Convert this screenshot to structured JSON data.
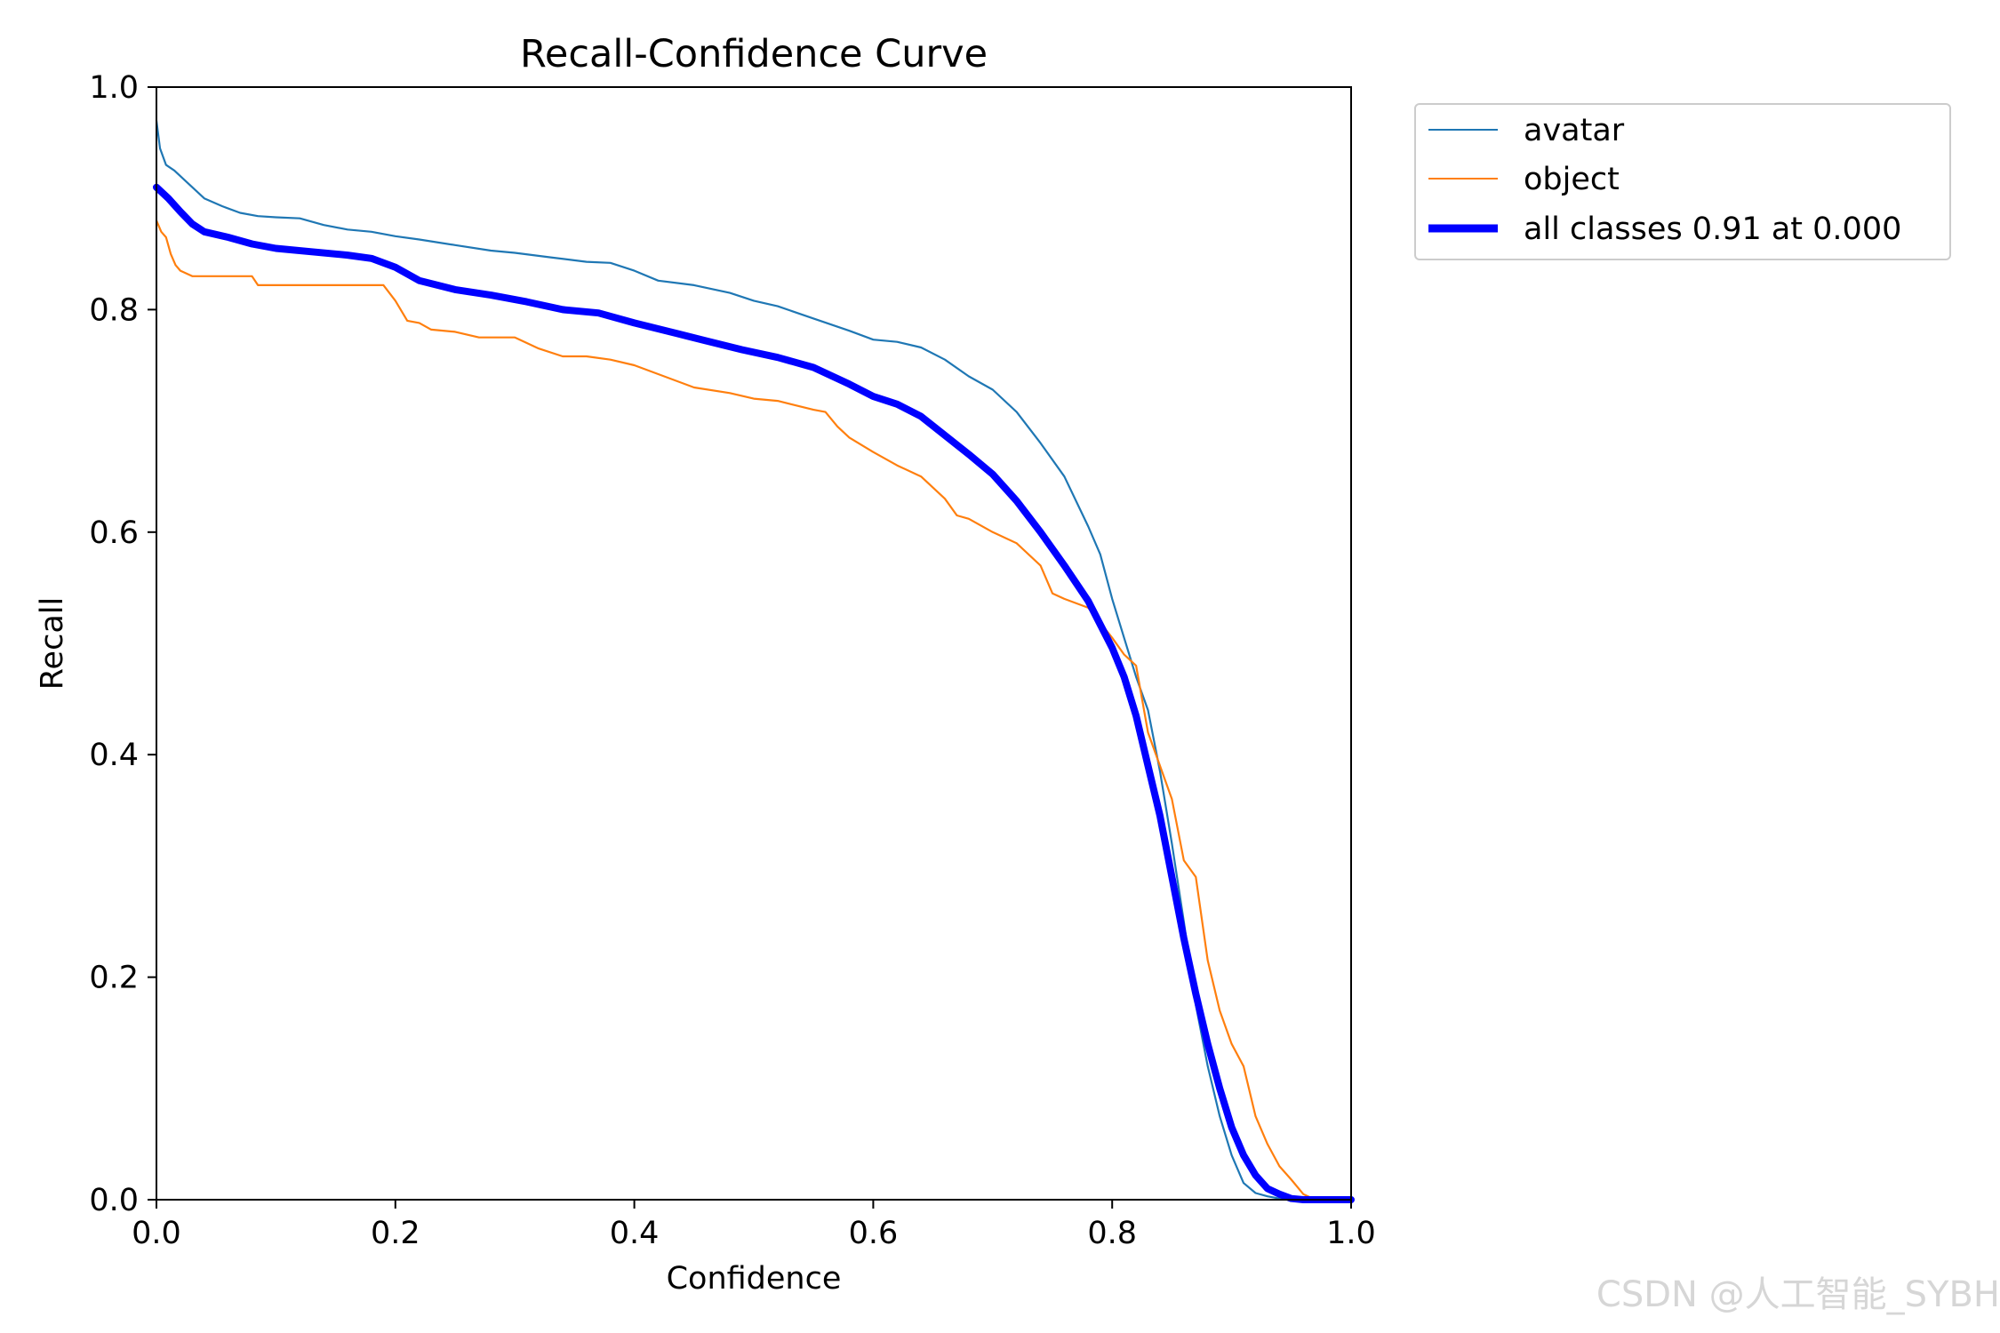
{
  "watermark": "CSDN @人工智能_SYBH",
  "chart_data": {
    "type": "line",
    "title": "Recall-Confidence Curve",
    "xlabel": "Confidence",
    "ylabel": "Recall",
    "xlim": [
      0,
      1
    ],
    "ylim": [
      0,
      1
    ],
    "xticks": [
      0.0,
      0.2,
      0.4,
      0.6,
      0.8,
      1.0
    ],
    "yticks": [
      0.0,
      0.2,
      0.4,
      0.6,
      0.8,
      1.0
    ],
    "xtick_labels": [
      "0.0",
      "0.2",
      "0.4",
      "0.6",
      "0.8",
      "1.0"
    ],
    "ytick_labels": [
      "0.0",
      "0.2",
      "0.4",
      "0.6",
      "0.8",
      "1.0"
    ],
    "grid": false,
    "legend_position": "outside upper-right",
    "series": [
      {
        "name": "avatar",
        "color": "#1f77b4",
        "line_width": "thin",
        "x": [
          0.0,
          0.003,
          0.008,
          0.015,
          0.025,
          0.04,
          0.055,
          0.07,
          0.085,
          0.1,
          0.12,
          0.14,
          0.16,
          0.18,
          0.2,
          0.22,
          0.25,
          0.28,
          0.3,
          0.33,
          0.36,
          0.38,
          0.4,
          0.42,
          0.45,
          0.48,
          0.5,
          0.52,
          0.55,
          0.58,
          0.6,
          0.62,
          0.64,
          0.66,
          0.68,
          0.7,
          0.72,
          0.74,
          0.76,
          0.78,
          0.79,
          0.8,
          0.81,
          0.82,
          0.83,
          0.84,
          0.85,
          0.86,
          0.87,
          0.88,
          0.89,
          0.9,
          0.91,
          0.92,
          0.93,
          0.94,
          0.95,
          0.96,
          0.97,
          0.98,
          1.0
        ],
        "y": [
          0.97,
          0.945,
          0.93,
          0.925,
          0.915,
          0.9,
          0.893,
          0.887,
          0.884,
          0.883,
          0.882,
          0.876,
          0.872,
          0.87,
          0.866,
          0.863,
          0.858,
          0.853,
          0.851,
          0.847,
          0.843,
          0.842,
          0.835,
          0.826,
          0.822,
          0.815,
          0.808,
          0.803,
          0.792,
          0.781,
          0.773,
          0.771,
          0.766,
          0.755,
          0.74,
          0.728,
          0.708,
          0.68,
          0.65,
          0.605,
          0.58,
          0.54,
          0.505,
          0.47,
          0.44,
          0.385,
          0.32,
          0.25,
          0.175,
          0.12,
          0.075,
          0.04,
          0.015,
          0.006,
          0.003,
          0.001,
          0.0,
          0.0,
          0.0,
          0.0,
          0.0
        ]
      },
      {
        "name": "object",
        "color": "#ff7f0e",
        "line_width": "thin",
        "x": [
          0.0,
          0.004,
          0.008,
          0.012,
          0.016,
          0.02,
          0.03,
          0.05,
          0.08,
          0.085,
          0.12,
          0.16,
          0.19,
          0.2,
          0.21,
          0.22,
          0.23,
          0.25,
          0.27,
          0.3,
          0.32,
          0.34,
          0.36,
          0.38,
          0.4,
          0.42,
          0.45,
          0.48,
          0.5,
          0.52,
          0.55,
          0.56,
          0.57,
          0.58,
          0.6,
          0.62,
          0.64,
          0.66,
          0.67,
          0.68,
          0.7,
          0.72,
          0.74,
          0.75,
          0.76,
          0.78,
          0.8,
          0.81,
          0.82,
          0.83,
          0.84,
          0.85,
          0.86,
          0.87,
          0.88,
          0.89,
          0.9,
          0.91,
          0.92,
          0.93,
          0.94,
          0.95,
          0.96,
          0.97,
          1.0
        ],
        "y": [
          0.88,
          0.87,
          0.865,
          0.85,
          0.84,
          0.835,
          0.83,
          0.83,
          0.83,
          0.822,
          0.822,
          0.822,
          0.822,
          0.808,
          0.79,
          0.788,
          0.782,
          0.78,
          0.775,
          0.775,
          0.765,
          0.758,
          0.758,
          0.755,
          0.75,
          0.742,
          0.73,
          0.725,
          0.72,
          0.718,
          0.71,
          0.708,
          0.695,
          0.685,
          0.672,
          0.66,
          0.65,
          0.63,
          0.615,
          0.612,
          0.6,
          0.59,
          0.57,
          0.545,
          0.54,
          0.532,
          0.505,
          0.49,
          0.48,
          0.42,
          0.39,
          0.36,
          0.305,
          0.29,
          0.215,
          0.17,
          0.14,
          0.12,
          0.075,
          0.05,
          0.03,
          0.018,
          0.005,
          0.0,
          0.0
        ]
      },
      {
        "name": "all classes 0.91 at 0.000",
        "color": "#0000ff",
        "line_width": "thick",
        "x": [
          0.0,
          0.01,
          0.02,
          0.03,
          0.04,
          0.06,
          0.08,
          0.1,
          0.13,
          0.16,
          0.18,
          0.2,
          0.22,
          0.25,
          0.28,
          0.31,
          0.34,
          0.37,
          0.4,
          0.43,
          0.46,
          0.49,
          0.52,
          0.55,
          0.58,
          0.6,
          0.62,
          0.64,
          0.66,
          0.68,
          0.7,
          0.72,
          0.74,
          0.76,
          0.78,
          0.8,
          0.81,
          0.82,
          0.83,
          0.84,
          0.85,
          0.86,
          0.87,
          0.88,
          0.89,
          0.9,
          0.91,
          0.92,
          0.93,
          0.94,
          0.95,
          0.96,
          0.97,
          0.98,
          1.0
        ],
        "y": [
          0.91,
          0.9,
          0.888,
          0.877,
          0.87,
          0.865,
          0.859,
          0.855,
          0.852,
          0.849,
          0.846,
          0.838,
          0.826,
          0.818,
          0.813,
          0.807,
          0.8,
          0.797,
          0.788,
          0.78,
          0.772,
          0.764,
          0.757,
          0.748,
          0.733,
          0.722,
          0.715,
          0.704,
          0.687,
          0.67,
          0.652,
          0.628,
          0.6,
          0.57,
          0.538,
          0.496,
          0.47,
          0.435,
          0.39,
          0.345,
          0.29,
          0.235,
          0.185,
          0.14,
          0.1,
          0.065,
          0.04,
          0.022,
          0.01,
          0.005,
          0.001,
          0.0,
          0.0,
          0.0,
          0.0
        ]
      }
    ]
  }
}
